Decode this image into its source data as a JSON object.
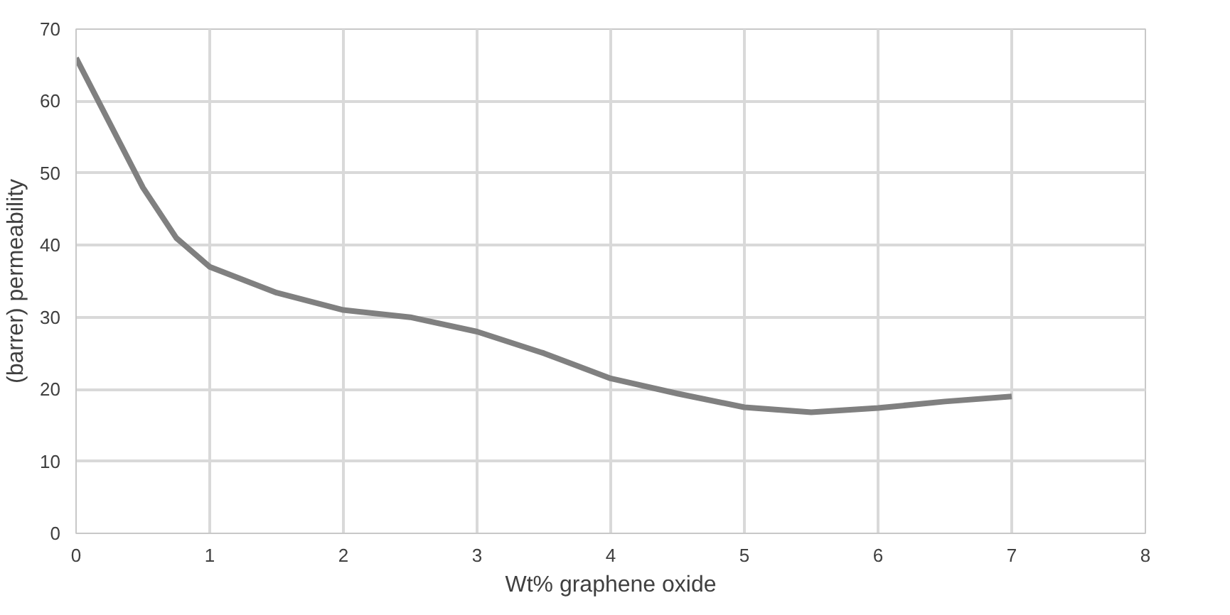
{
  "chart_data": {
    "type": "line",
    "xlabel": "Wt% graphene oxide",
    "ylabel": "(barrer) permeability",
    "x": [
      0,
      0.25,
      0.5,
      0.75,
      1,
      1.5,
      2,
      2.5,
      3,
      3.5,
      4,
      4.5,
      5,
      5.5,
      6,
      6.5,
      7
    ],
    "series": [
      {
        "color": "#808080",
        "values": [
          66,
          57,
          48,
          41,
          37,
          33.4,
          31,
          30,
          28,
          25,
          21.5,
          19.4,
          17.5,
          16.8,
          17.4,
          18.3,
          19
        ]
      }
    ],
    "xlim": [
      0,
      8
    ],
    "xticks": [
      0,
      1,
      2,
      3,
      4,
      5,
      6,
      7,
      8
    ],
    "ylim": [
      0,
      70
    ],
    "yticks": [
      0,
      10,
      20,
      30,
      40,
      50,
      60,
      70
    ],
    "grid": true,
    "marker": "none",
    "line_style": "solid"
  }
}
